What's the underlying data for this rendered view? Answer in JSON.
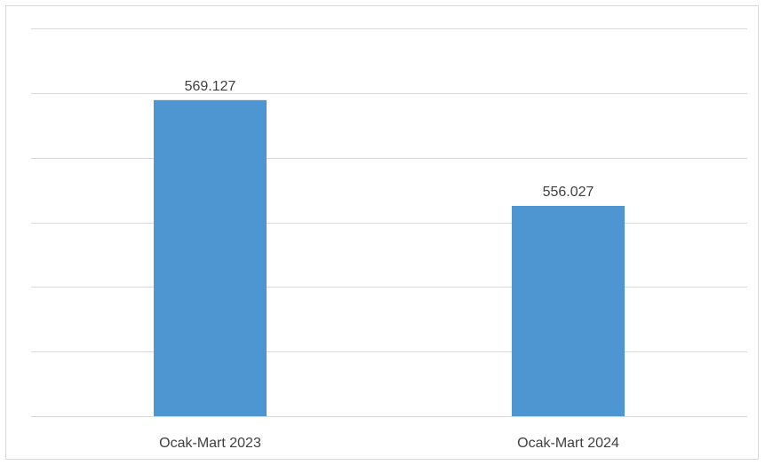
{
  "chart_data": {
    "type": "bar",
    "title": "",
    "xlabel": "",
    "ylabel": "",
    "categories": [
      "Ocak-Mart 2023",
      "Ocak-Mart 2024"
    ],
    "values": [
      569.127,
      556.027
    ],
    "data_labels": [
      "569.127",
      "556.027"
    ],
    "ylim": [
      530,
      578
    ],
    "y_ticks": [
      530,
      538,
      546,
      554,
      562,
      570,
      578
    ],
    "grid": true,
    "legend": "none",
    "bar_color": "#4e96d1"
  }
}
